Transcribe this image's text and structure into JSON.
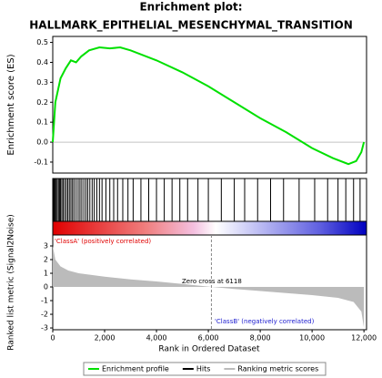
{
  "chart_data": [
    {
      "type": "line",
      "title": "Enrichment plot:",
      "subtitle": "HALLMARK_EPITHELIAL_MESENCHYMAL_TRANSITION",
      "ylabel": "Enrichment score (ES)",
      "x": [
        0,
        100,
        300,
        500,
        700,
        900,
        1100,
        1400,
        1800,
        2200,
        2600,
        3000,
        4000,
        5000,
        6000,
        7000,
        8000,
        9000,
        10000,
        10800,
        11400,
        11700,
        11900,
        12000
      ],
      "series": [
        {
          "name": "Enrichment profile",
          "color": "#00e000",
          "values": [
            0,
            0.2,
            0.32,
            0.37,
            0.41,
            0.4,
            0.43,
            0.46,
            0.475,
            0.47,
            0.475,
            0.46,
            0.41,
            0.35,
            0.28,
            0.2,
            0.12,
            0.05,
            -0.03,
            -0.08,
            -0.11,
            -0.095,
            -0.05,
            0.0
          ]
        }
      ],
      "xlim": [
        0,
        12100
      ],
      "ylim": [
        -0.155,
        0.53
      ],
      "yticks": [
        -0.1,
        {
          "value": 0,
          "label": "0.0"
        },
        0.1,
        0.2,
        0.3,
        0.4,
        0.5
      ]
    },
    {
      "type": "rug",
      "series": [
        {
          "name": "Hits",
          "color": "#000000",
          "values": [
            10,
            30,
            60,
            90,
            130,
            170,
            220,
            260,
            300,
            350,
            400,
            460,
            520,
            580,
            640,
            700,
            760,
            820,
            900,
            980,
            1050,
            1120,
            1200,
            1280,
            1350,
            1430,
            1520,
            1600,
            1700,
            1800,
            1900,
            2050,
            2200,
            2350,
            2500,
            2700,
            2900,
            3100,
            3400,
            3700,
            4000,
            4300,
            4600,
            4900,
            5200,
            5600,
            6000,
            6500,
            7000,
            7400,
            7900,
            8400,
            8900,
            9500,
            10100,
            10600,
            11000,
            11300,
            11600,
            11850
          ]
        }
      ],
      "xlim": [
        0,
        12100
      ]
    },
    {
      "type": "area",
      "ylabel": "Ranked list metric (Signal2Noise)",
      "xlabel": "Rank in Ordered Dataset",
      "x": [
        0,
        100,
        300,
        600,
        1000,
        2000,
        3000,
        4000,
        5000,
        6118,
        7000,
        8000,
        9000,
        10000,
        11000,
        11600,
        11900,
        12000
      ],
      "series": [
        {
          "name": "Ranking metric scores",
          "color": "#bbbbbb",
          "values": [
            3.0,
            2.0,
            1.5,
            1.2,
            1.0,
            0.75,
            0.55,
            0.4,
            0.22,
            0,
            -0.15,
            -0.3,
            -0.45,
            -0.6,
            -0.8,
            -1.1,
            -1.8,
            -3.0
          ]
        }
      ],
      "zero_cross": 6118,
      "annotations": [
        "Zero cross at 6118",
        "'ClassA' (positively correlated)",
        "'ClassB' (negatively correlated)"
      ],
      "xlim": [
        0,
        12100
      ],
      "ylim": [
        -3.13,
        3.8
      ],
      "yticks": [
        -3,
        -2,
        -1,
        0,
        1,
        2,
        3
      ],
      "xticks": [
        0,
        {
          "value": 2000,
          "label": "2,000"
        },
        {
          "value": 4000,
          "label": "4,000"
        },
        {
          "value": 6000,
          "label": "6,000"
        },
        {
          "value": 8000,
          "label": "8,000"
        },
        {
          "value": 10000,
          "label": "10,000"
        },
        {
          "value": 12000,
          "label": "12,000"
        }
      ]
    }
  ]
}
